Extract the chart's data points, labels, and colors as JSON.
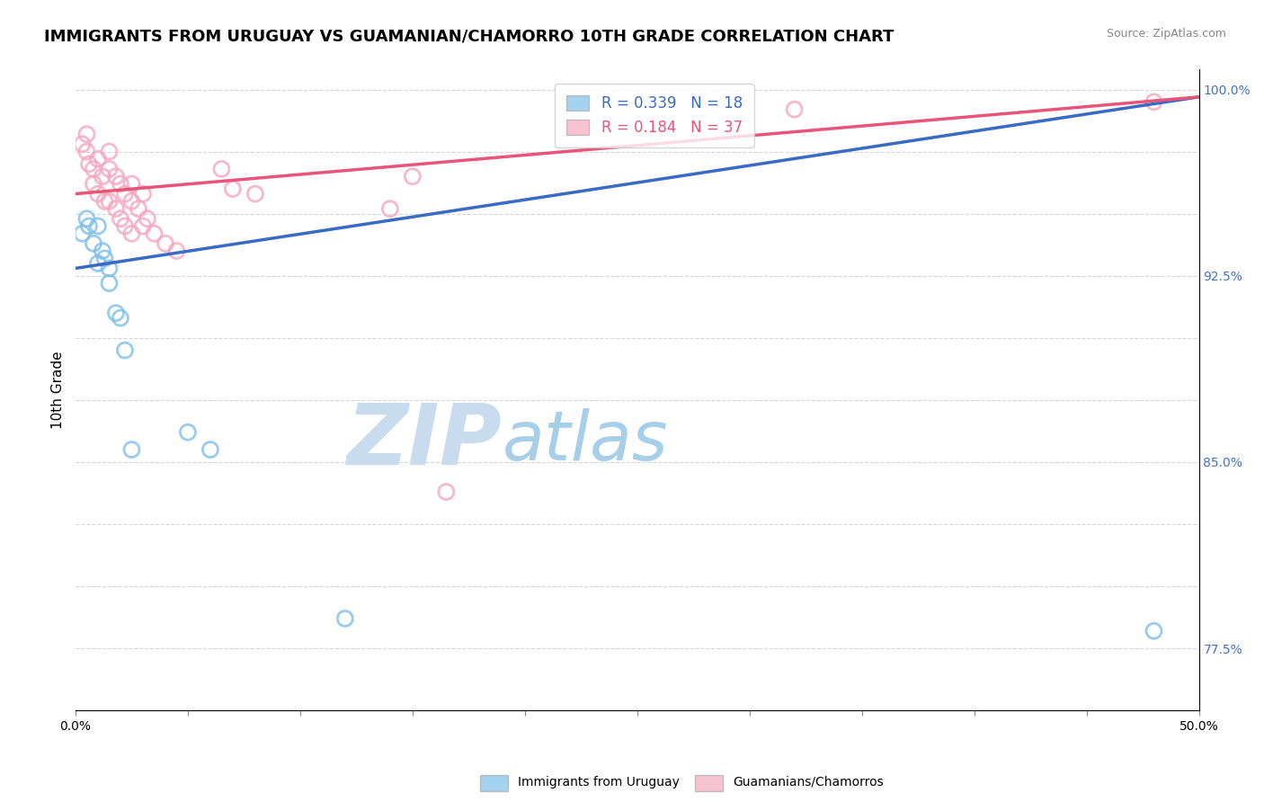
{
  "title": "IMMIGRANTS FROM URUGUAY VS GUAMANIAN/CHAMORRO 10TH GRADE CORRELATION CHART",
  "source": "Source: ZipAtlas.com",
  "ylabel": "10th Grade",
  "xlim": [
    0.0,
    0.5
  ],
  "ylim": [
    0.75,
    1.008
  ],
  "xticks": [
    0.0,
    0.05,
    0.1,
    0.15,
    0.2,
    0.25,
    0.3,
    0.35,
    0.4,
    0.45,
    0.5
  ],
  "xticklabels": [
    "0.0%",
    "",
    "",
    "",
    "",
    "",
    "",
    "",
    "",
    "",
    "50.0%"
  ],
  "yticks": [
    0.775,
    0.8,
    0.825,
    0.85,
    0.875,
    0.9,
    0.925,
    0.95,
    0.975,
    1.0
  ],
  "yticklabels": [
    "77.5%",
    "",
    "",
    "85.0%",
    "",
    "",
    "92.5%",
    "",
    "",
    "100.0%"
  ],
  "blue_color": "#7fbfe8",
  "pink_color": "#f4a8bf",
  "blue_line_color": "#3a6bc4",
  "pink_line_color": "#e8547a",
  "watermark_ZIP": "ZIP",
  "watermark_atlas": "atlas",
  "watermark_color_ZIP": "#c8dced",
  "watermark_color_atlas": "#a8cfe8",
  "legend_label_blue": "R = 0.339   N = 18",
  "legend_label_pink": "R = 0.184   N = 37",
  "blue_points_x": [
    0.003,
    0.005,
    0.006,
    0.008,
    0.01,
    0.01,
    0.012,
    0.013,
    0.015,
    0.015,
    0.018,
    0.02,
    0.022,
    0.025,
    0.05,
    0.06,
    0.12,
    0.48
  ],
  "blue_points_y": [
    0.942,
    0.948,
    0.945,
    0.938,
    0.945,
    0.93,
    0.935,
    0.932,
    0.928,
    0.922,
    0.91,
    0.908,
    0.895,
    0.855,
    0.862,
    0.855,
    0.787,
    0.782
  ],
  "pink_points_x": [
    0.003,
    0.005,
    0.005,
    0.006,
    0.008,
    0.008,
    0.01,
    0.01,
    0.012,
    0.013,
    0.015,
    0.015,
    0.015,
    0.018,
    0.018,
    0.02,
    0.02,
    0.022,
    0.022,
    0.025,
    0.025,
    0.025,
    0.028,
    0.03,
    0.03,
    0.032,
    0.035,
    0.04,
    0.045,
    0.065,
    0.07,
    0.08,
    0.14,
    0.15,
    0.165,
    0.32,
    0.48
  ],
  "pink_points_y": [
    0.978,
    0.982,
    0.975,
    0.97,
    0.968,
    0.962,
    0.972,
    0.958,
    0.965,
    0.955,
    0.975,
    0.968,
    0.955,
    0.965,
    0.952,
    0.962,
    0.948,
    0.958,
    0.945,
    0.962,
    0.955,
    0.942,
    0.952,
    0.958,
    0.945,
    0.948,
    0.942,
    0.938,
    0.935,
    0.968,
    0.96,
    0.958,
    0.952,
    0.965,
    0.838,
    0.992,
    0.995
  ],
  "blue_line_x0": 0.0,
  "blue_line_x1": 0.5,
  "blue_line_y0": 0.928,
  "blue_line_y1": 0.997,
  "pink_line_x0": 0.0,
  "pink_line_x1": 0.5,
  "pink_line_y0": 0.958,
  "pink_line_y1": 0.997,
  "title_fontsize": 13,
  "axis_label_fontsize": 11,
  "tick_fontsize": 10,
  "legend_fontsize": 12
}
